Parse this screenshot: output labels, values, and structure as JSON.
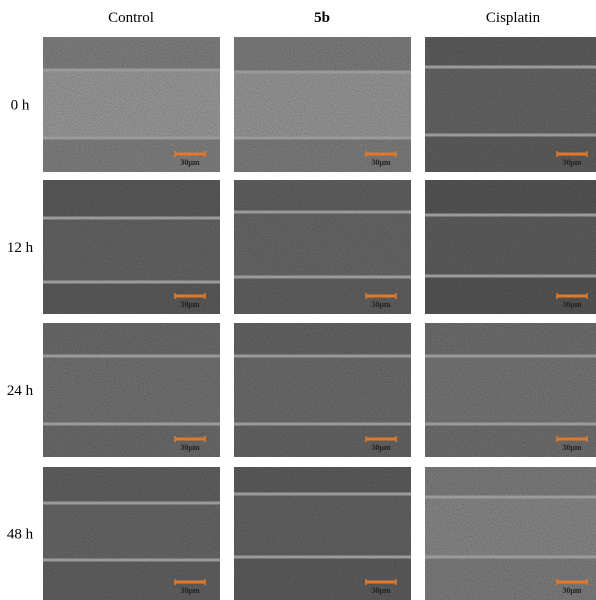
{
  "columns": [
    "Control",
    "5b",
    "Cisplatin"
  ],
  "rows": [
    "0 h",
    "12 h",
    "24 h",
    "48 h"
  ],
  "panels": [
    [
      {
        "scale_label": "30μm"
      },
      {
        "scale_label": "30μm"
      },
      {
        "scale_label": "30μm"
      }
    ],
    [
      {
        "scale_label": "30μm"
      },
      {
        "scale_label": "30μm"
      },
      {
        "scale_label": "30μm"
      }
    ],
    [
      {
        "scale_label": "30μm"
      },
      {
        "scale_label": "30μm"
      },
      {
        "scale_label": "30μm"
      }
    ],
    [
      {
        "scale_label": "30μm"
      },
      {
        "scale_label": "30μm"
      },
      {
        "scale_label": "30μm"
      }
    ]
  ]
}
